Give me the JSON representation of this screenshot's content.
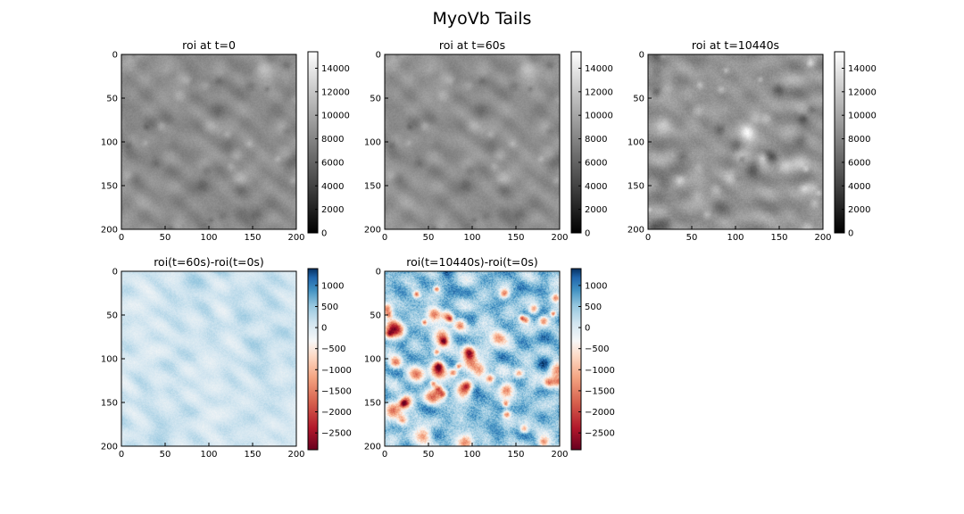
{
  "figure": {
    "title": "MyoVb Tails"
  },
  "chart_data": [
    {
      "type": "heatmap",
      "title": "roi at t=0",
      "x_ticks": [
        "0",
        "50",
        "100",
        "150",
        "200"
      ],
      "y_ticks": [
        "0",
        "50",
        "100",
        "150",
        "200"
      ],
      "xlim": [
        0,
        200
      ],
      "ylim": [
        200,
        0
      ],
      "colormap": "gray",
      "colorbar": {
        "ticks": [
          "0",
          "2000",
          "4000",
          "6000",
          "8000",
          "10000",
          "12000",
          "14000"
        ],
        "range": [
          0,
          15400
        ]
      },
      "field": {
        "base": 0.55,
        "spread": 0.09,
        "blobs": 0.1,
        "seed": 11
      }
    },
    {
      "type": "heatmap",
      "title": "roi at t=60s",
      "x_ticks": [
        "0",
        "50",
        "100",
        "150",
        "200"
      ],
      "y_ticks": [
        "0",
        "50",
        "100",
        "150",
        "200"
      ],
      "xlim": [
        0,
        200
      ],
      "ylim": [
        200,
        0
      ],
      "colormap": "gray",
      "colorbar": {
        "ticks": [
          "0",
          "2000",
          "4000",
          "6000",
          "8000",
          "10000",
          "12000",
          "14000"
        ],
        "range": [
          0,
          15400
        ]
      },
      "field": {
        "base": 0.56,
        "spread": 0.09,
        "blobs": 0.1,
        "seed": 11
      }
    },
    {
      "type": "heatmap",
      "title": "roi at t=10440s",
      "x_ticks": [
        "0",
        "50",
        "100",
        "150",
        "200"
      ],
      "y_ticks": [
        "0",
        "50",
        "100",
        "150",
        "200"
      ],
      "xlim": [
        0,
        200
      ],
      "ylim": [
        200,
        0
      ],
      "colormap": "gray",
      "colorbar": {
        "ticks": [
          "0",
          "2000",
          "4000",
          "6000",
          "8000",
          "10000",
          "12000",
          "14000"
        ],
        "range": [
          0,
          15400
        ]
      },
      "field": {
        "base": 0.58,
        "spread": 0.12,
        "blobs": 0.16,
        "seed": 29
      }
    },
    {
      "type": "heatmap",
      "title": "roi(t=60s)-roi(t=0s)",
      "x_ticks": [
        "0",
        "50",
        "100",
        "150",
        "200"
      ],
      "y_ticks": [
        "0",
        "50",
        "100",
        "150",
        "200"
      ],
      "xlim": [
        0,
        200
      ],
      "ylim": [
        200,
        0
      ],
      "colormap": "RdBu",
      "colorbar": {
        "ticks": [
          "1000",
          "500",
          "0",
          "−500",
          "−1000",
          "−1500",
          "−2000",
          "−2500"
        ],
        "range": [
          -2900,
          1400
        ]
      },
      "field": {
        "base": 0.7,
        "spread": 0.07,
        "blobs": 0.0,
        "seed": 7
      }
    },
    {
      "type": "heatmap",
      "title": "roi(t=10440s)-roi(t=0s)",
      "x_ticks": [
        "0",
        "50",
        "100",
        "150",
        "200"
      ],
      "y_ticks": [
        "0",
        "50",
        "100",
        "150",
        "200"
      ],
      "xlim": [
        0,
        200
      ],
      "ylim": [
        200,
        0
      ],
      "colormap": "RdBu",
      "colorbar": {
        "ticks": [
          "1000",
          "500",
          "0",
          "−500",
          "−1000",
          "−1500",
          "−2000",
          "−2500"
        ],
        "range": [
          -2900,
          1400
        ]
      },
      "field": {
        "base": 0.8,
        "spread": 0.2,
        "blobs": -0.45,
        "seed": 41
      }
    }
  ]
}
